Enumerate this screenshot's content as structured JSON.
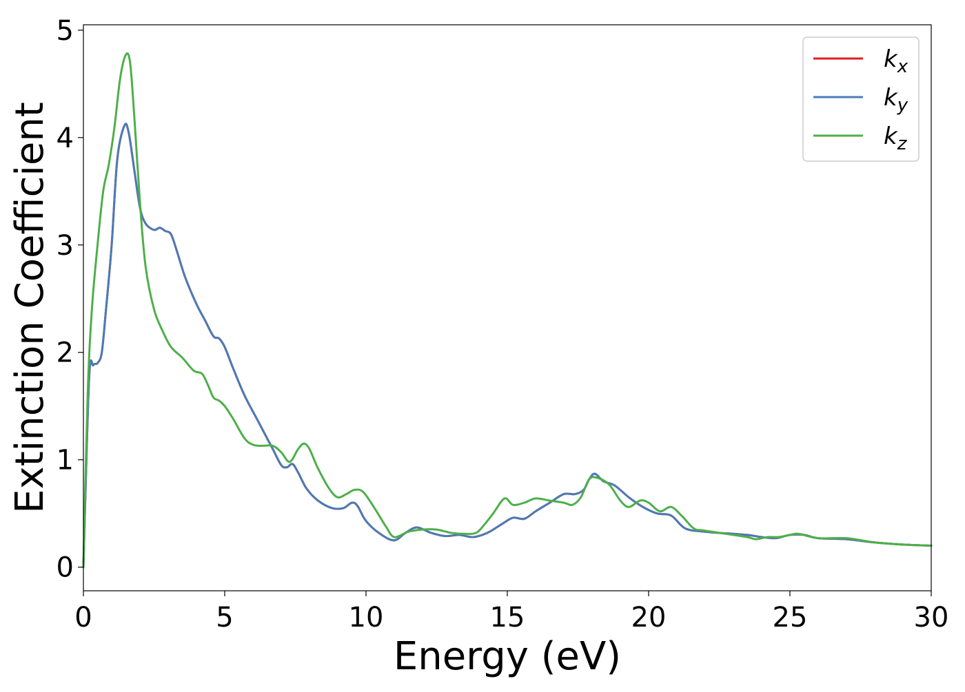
{
  "chart_data": {
    "type": "line",
    "xlabel": "Energy (eV)",
    "ylabel": "Extinction Coefficient",
    "xlim": [
      0,
      30
    ],
    "ylim": [
      -0.22,
      5.05
    ],
    "xticks": [
      0,
      5,
      10,
      15,
      20,
      25,
      30
    ],
    "yticks": [
      0,
      1,
      2,
      3,
      4,
      5
    ],
    "grid": false,
    "legend_position": "top-right",
    "series": [
      {
        "name": "k_x",
        "label_main": "k",
        "label_sub": "x",
        "color": "#e41a1c",
        "x": [
          0,
          0.2,
          0.35,
          0.5,
          0.65,
          0.8,
          1.0,
          1.2,
          1.45,
          1.6,
          1.8,
          2.0,
          2.2,
          2.5,
          2.7,
          2.9,
          3.1,
          3.3,
          3.6,
          4.0,
          4.3,
          4.6,
          4.8,
          5.0,
          5.3,
          5.7,
          6.2,
          6.7,
          7.0,
          7.2,
          7.4,
          7.6,
          7.9,
          8.3,
          8.8,
          9.2,
          9.5,
          9.7,
          10.0,
          10.5,
          11.0,
          11.4,
          11.8,
          12.3,
          12.8,
          13.3,
          13.8,
          14.3,
          14.8,
          15.2,
          15.6,
          16.0,
          16.5,
          17.0,
          17.4,
          17.7,
          17.9,
          18.1,
          18.4,
          18.8,
          19.3,
          19.8,
          20.3,
          20.8,
          21.3,
          22.0,
          23.0,
          23.5,
          24.0,
          24.5,
          25.0,
          25.5,
          26.0,
          27.0,
          28.0,
          29.0,
          30.0
        ],
        "y": [
          0.0,
          1.75,
          1.88,
          1.9,
          2.0,
          2.4,
          3.0,
          3.8,
          4.11,
          4.05,
          3.7,
          3.35,
          3.2,
          3.14,
          3.16,
          3.13,
          3.1,
          2.95,
          2.7,
          2.45,
          2.3,
          2.15,
          2.13,
          2.05,
          1.85,
          1.6,
          1.35,
          1.1,
          0.95,
          0.93,
          0.96,
          0.88,
          0.73,
          0.62,
          0.55,
          0.55,
          0.6,
          0.57,
          0.43,
          0.31,
          0.25,
          0.32,
          0.37,
          0.32,
          0.29,
          0.3,
          0.28,
          0.32,
          0.4,
          0.46,
          0.45,
          0.52,
          0.6,
          0.68,
          0.68,
          0.72,
          0.82,
          0.87,
          0.8,
          0.76,
          0.65,
          0.56,
          0.5,
          0.48,
          0.36,
          0.33,
          0.31,
          0.3,
          0.28,
          0.27,
          0.3,
          0.3,
          0.27,
          0.26,
          0.23,
          0.21,
          0.2
        ]
      },
      {
        "name": "k_y",
        "label_main": "k",
        "label_sub": "y",
        "color": "#4a7bb7",
        "x": [
          0,
          0.2,
          0.35,
          0.5,
          0.65,
          0.8,
          1.0,
          1.2,
          1.45,
          1.6,
          1.8,
          2.0,
          2.2,
          2.5,
          2.7,
          2.9,
          3.1,
          3.3,
          3.6,
          4.0,
          4.3,
          4.6,
          4.8,
          5.0,
          5.3,
          5.7,
          6.2,
          6.7,
          7.0,
          7.2,
          7.4,
          7.6,
          7.9,
          8.3,
          8.8,
          9.2,
          9.5,
          9.7,
          10.0,
          10.5,
          11.0,
          11.4,
          11.8,
          12.3,
          12.8,
          13.3,
          13.8,
          14.3,
          14.8,
          15.2,
          15.6,
          16.0,
          16.5,
          17.0,
          17.4,
          17.7,
          17.9,
          18.1,
          18.4,
          18.8,
          19.3,
          19.8,
          20.3,
          20.8,
          21.3,
          22.0,
          23.0,
          23.5,
          24.0,
          24.5,
          25.0,
          25.5,
          26.0,
          27.0,
          28.0,
          29.0,
          30.0
        ],
        "y": [
          0.0,
          1.75,
          1.88,
          1.9,
          2.0,
          2.4,
          3.0,
          3.8,
          4.11,
          4.05,
          3.7,
          3.35,
          3.2,
          3.14,
          3.16,
          3.13,
          3.1,
          2.95,
          2.7,
          2.45,
          2.3,
          2.15,
          2.13,
          2.05,
          1.85,
          1.6,
          1.35,
          1.1,
          0.95,
          0.93,
          0.96,
          0.88,
          0.73,
          0.62,
          0.55,
          0.55,
          0.6,
          0.57,
          0.43,
          0.31,
          0.25,
          0.32,
          0.37,
          0.32,
          0.29,
          0.3,
          0.28,
          0.32,
          0.4,
          0.46,
          0.45,
          0.52,
          0.6,
          0.68,
          0.68,
          0.72,
          0.82,
          0.87,
          0.8,
          0.76,
          0.65,
          0.56,
          0.5,
          0.48,
          0.36,
          0.33,
          0.31,
          0.3,
          0.28,
          0.27,
          0.3,
          0.3,
          0.27,
          0.26,
          0.23,
          0.21,
          0.2
        ]
      },
      {
        "name": "k_z",
        "label_main": "k",
        "label_sub": "z",
        "color": "#4daf4a",
        "x": [
          0,
          0.15,
          0.3,
          0.5,
          0.7,
          0.9,
          1.1,
          1.3,
          1.5,
          1.65,
          1.8,
          2.0,
          2.2,
          2.5,
          2.8,
          3.1,
          3.5,
          3.9,
          4.2,
          4.4,
          4.6,
          4.8,
          5.0,
          5.3,
          5.7,
          6.0,
          6.3,
          6.7,
          7.0,
          7.3,
          7.6,
          7.8,
          8.0,
          8.3,
          8.7,
          9.0,
          9.3,
          9.6,
          9.9,
          10.3,
          10.7,
          11.0,
          11.5,
          12.0,
          12.5,
          13.0,
          13.5,
          13.9,
          14.2,
          14.5,
          14.9,
          15.2,
          15.6,
          16.0,
          16.5,
          17.0,
          17.3,
          17.6,
          17.9,
          18.2,
          18.6,
          19.0,
          19.3,
          19.7,
          20.0,
          20.4,
          20.8,
          21.2,
          21.6,
          22.0,
          23.0,
          23.5,
          23.8,
          24.2,
          24.6,
          25.0,
          25.3,
          26.0,
          27.0,
          28.0,
          29.0,
          30.0
        ],
        "y": [
          0.0,
          1.6,
          2.4,
          3.0,
          3.5,
          3.75,
          4.1,
          4.55,
          4.77,
          4.7,
          4.2,
          3.4,
          2.8,
          2.4,
          2.2,
          2.05,
          1.95,
          1.83,
          1.8,
          1.7,
          1.58,
          1.55,
          1.5,
          1.38,
          1.2,
          1.14,
          1.13,
          1.13,
          1.07,
          0.98,
          1.1,
          1.15,
          1.1,
          0.92,
          0.73,
          0.65,
          0.68,
          0.72,
          0.7,
          0.55,
          0.38,
          0.28,
          0.33,
          0.35,
          0.35,
          0.32,
          0.31,
          0.32,
          0.4,
          0.5,
          0.64,
          0.58,
          0.6,
          0.64,
          0.62,
          0.6,
          0.58,
          0.65,
          0.82,
          0.83,
          0.77,
          0.62,
          0.56,
          0.62,
          0.6,
          0.52,
          0.56,
          0.47,
          0.36,
          0.34,
          0.3,
          0.28,
          0.26,
          0.28,
          0.28,
          0.3,
          0.31,
          0.27,
          0.27,
          0.23,
          0.21,
          0.2
        ]
      }
    ]
  }
}
